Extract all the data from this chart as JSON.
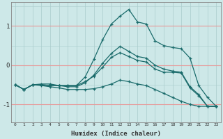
{
  "xlabel": "Humidex (Indice chaleur)",
  "bg_color": "#cde8e8",
  "line_color": "#1a6b6b",
  "grid_red_color": "#e89898",
  "grid_gray_color": "#aacccc",
  "xlim": [
    -0.5,
    23.5
  ],
  "ylim": [
    -1.45,
    1.6
  ],
  "yticks": [
    -1,
    0,
    1
  ],
  "xticks": [
    0,
    1,
    2,
    3,
    4,
    5,
    6,
    7,
    8,
    9,
    10,
    11,
    12,
    13,
    14,
    15,
    16,
    17,
    18,
    19,
    20,
    21,
    22,
    23
  ],
  "line1_x": [
    0,
    1,
    2,
    3,
    4,
    5,
    6,
    7,
    8,
    9,
    10,
    11,
    12,
    13,
    14,
    15,
    16,
    17,
    18,
    19,
    20,
    21,
    22,
    23
  ],
  "line1_y": [
    -0.5,
    -0.62,
    -0.5,
    -0.48,
    -0.48,
    -0.52,
    -0.52,
    -0.52,
    -0.3,
    0.15,
    0.65,
    1.05,
    1.25,
    1.42,
    1.1,
    1.05,
    0.62,
    0.5,
    0.45,
    0.42,
    0.18,
    -0.52,
    -0.82,
    -1.05
  ],
  "line2_x": [
    0,
    1,
    2,
    3,
    4,
    5,
    6,
    7,
    8,
    9,
    10,
    11,
    12,
    13,
    14,
    15,
    16,
    17,
    18,
    19,
    20,
    21,
    22,
    23
  ],
  "line2_y": [
    -0.5,
    -0.62,
    -0.5,
    -0.5,
    -0.52,
    -0.52,
    -0.52,
    -0.52,
    -0.42,
    -0.28,
    -0.05,
    0.2,
    0.32,
    0.22,
    0.12,
    0.08,
    -0.1,
    -0.18,
    -0.18,
    -0.2,
    -0.58,
    -0.78,
    -1.05,
    -1.05
  ],
  "line3_x": [
    0,
    1,
    2,
    3,
    4,
    5,
    6,
    7,
    8,
    9,
    10,
    11,
    12,
    13,
    14,
    15,
    16,
    17,
    18,
    19,
    20,
    21,
    22,
    23
  ],
  "line3_y": [
    -0.5,
    -0.62,
    -0.5,
    -0.52,
    -0.55,
    -0.58,
    -0.62,
    -0.62,
    -0.62,
    -0.6,
    -0.55,
    -0.48,
    -0.38,
    -0.42,
    -0.48,
    -0.52,
    -0.62,
    -0.72,
    -0.82,
    -0.92,
    -1.0,
    -1.05,
    -1.05,
    -1.05
  ],
  "line4_x": [
    0,
    1,
    2,
    3,
    4,
    5,
    6,
    7,
    8,
    9,
    10,
    11,
    12,
    13,
    14,
    15,
    16,
    17,
    18,
    19,
    20,
    21,
    22,
    23
  ],
  "line4_y": [
    -0.5,
    -0.62,
    -0.5,
    -0.5,
    -0.52,
    -0.52,
    -0.55,
    -0.55,
    -0.45,
    -0.25,
    0.05,
    0.3,
    0.48,
    0.35,
    0.22,
    0.18,
    0.0,
    -0.1,
    -0.15,
    -0.18,
    -0.55,
    -0.75,
    -1.05,
    -1.05
  ]
}
